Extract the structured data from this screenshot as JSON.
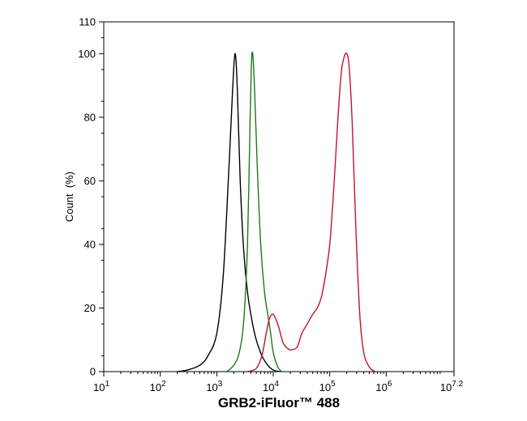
{
  "chart_data": {
    "type": "line",
    "title": "",
    "xlabel": "GRB2-iFluor™ 488",
    "ylabel": "Count  (%)",
    "x_scale": "log10",
    "xlim": [
      10,
      15848932
    ],
    "ylim": [
      0,
      110
    ],
    "x_ticks": [
      {
        "base": "10",
        "exp": "1",
        "value": 10
      },
      {
        "base": "10",
        "exp": "2",
        "value": 100
      },
      {
        "base": "10",
        "exp": "3",
        "value": 1000
      },
      {
        "base": "10",
        "exp": "4",
        "value": 10000
      },
      {
        "base": "10",
        "exp": "5",
        "value": 100000
      },
      {
        "base": "10",
        "exp": "6",
        "value": 1000000
      },
      {
        "base": "10",
        "exp": "7.2",
        "value": 15848932
      }
    ],
    "y_ticks": [
      "0",
      "20",
      "40",
      "60",
      "80",
      "100",
      "110"
    ],
    "y_tick_values": [
      0,
      20,
      40,
      60,
      80,
      100,
      110
    ],
    "grid": false,
    "legend": "none",
    "series": [
      {
        "color": "#000000",
        "x": [
          200,
          300,
          500,
          700,
          1000,
          1300,
          1600,
          1900,
          2100,
          2300,
          2600,
          3000,
          3500,
          4200,
          5000,
          6300,
          8000,
          10000,
          13000
        ],
        "y": [
          0,
          0.5,
          2,
          5,
          12,
          30,
          60,
          88,
          100,
          90,
          60,
          38,
          25,
          16,
          10,
          5,
          2,
          0.5,
          0
        ]
      },
      {
        "color": "#1a7a1a",
        "x": [
          1500,
          2000,
          2500,
          3000,
          3500,
          3900,
          4200,
          4600,
          5200,
          6000,
          7000,
          8000,
          9000,
          10000,
          12000,
          14000
        ],
        "y": [
          0,
          2,
          6,
          16,
          40,
          80,
          100,
          92,
          65,
          40,
          25,
          18,
          12,
          6,
          1.5,
          0
        ]
      },
      {
        "color": "#c8102e",
        "x": [
          3500,
          5000,
          6300,
          7500,
          8500,
          9500,
          10500,
          12500,
          15000,
          19000,
          23000,
          27000,
          32000,
          40000,
          50000,
          60000,
          70000,
          80000,
          100000,
          120000,
          140000,
          160000,
          180000,
          200000,
          220000,
          250000,
          290000,
          340000,
          400000,
          500000,
          630000
        ],
        "y": [
          0,
          1,
          5,
          12,
          16.5,
          18,
          17.5,
          14,
          9,
          7,
          7,
          8,
          12,
          15,
          18,
          20,
          23,
          28,
          40,
          60,
          80,
          94,
          99,
          100,
          96,
          78,
          45,
          18,
          6,
          1.5,
          0
        ]
      }
    ]
  }
}
